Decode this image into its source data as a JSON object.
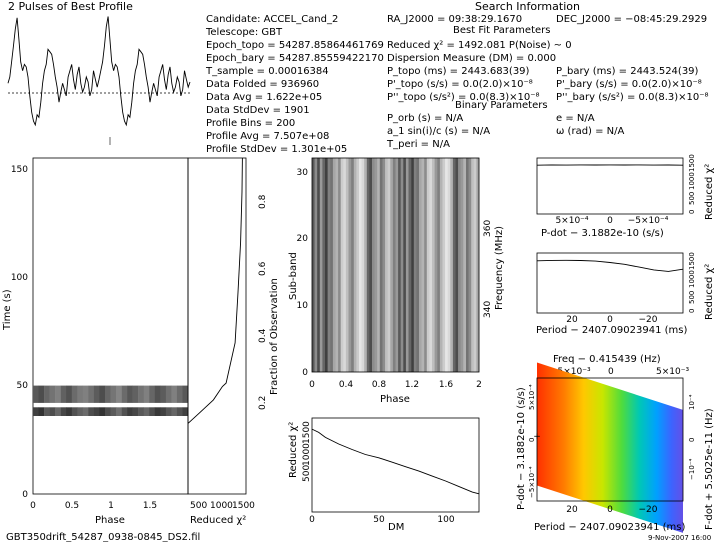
{
  "profile_title": "2 Pulses of Best Profile",
  "search_info_title": "Search Information",
  "info": {
    "col1": [
      "Candidate:  ACCEL_Cand_2",
      "Telescope:  GBT",
      "Epoch_topo = 54287.85864461769",
      "Epoch_bary = 54287.85559422170",
      "T_sample  =   0.00016384",
      "Data Folded   =   936960",
      "Data Avg        =   1.622e+05",
      "Data StdDev   =   1901",
      "Profile Bins    =   200",
      "Profile Avg     =   7.507e+08",
      "Profile StdDev =   1.301e+05"
    ],
    "col2": [
      "RA_J2000 = 09:38:29.1670",
      "Reduced χ² = 1492.081   P(Noise) ~ 0",
      "Dispersion Measure (DM) = 0.000",
      "P_topo (ms)   =  2443.683(39)",
      "P'_topo (s/s) = 0.0(2.0)×10⁻⁸",
      "P''_topo (s/s²) = 0.0(8.3)×10⁻⁸",
      "P_orb (s) = N/A",
      "a_1 sin(i)/c (s) = N/A",
      "T_peri = N/A"
    ],
    "col3": [
      "DEC_J2000 = −08:45:29.2929",
      "P_bary (ms)  =  2443.524(39)",
      "P'_bary (s/s) = 0.0(2.0)×10⁻⁸",
      "P''_bary (s/s²) = 0.0(8.3)×10⁻⁸",
      "e = N/A",
      "ω (rad) = N/A"
    ],
    "best_fit_title": "Best Fit Parameters",
    "binary_title": "Binary Parameters"
  },
  "footer": {
    "filename": "GBT350drift_54287_0938-0845_DS2.fil",
    "date": "9-Nov-2007 16:00"
  },
  "chart_data": [
    {
      "type": "line",
      "id": "pulse-profile",
      "title": "2 Pulses of Best Profile",
      "x": [
        0,
        0.02,
        0.04,
        0.06,
        0.08,
        0.1,
        0.12,
        0.14,
        0.16,
        0.18,
        0.2,
        0.22,
        0.24,
        0.26,
        0.28,
        0.3,
        0.32,
        0.34,
        0.36,
        0.38,
        0.4,
        0.42,
        0.44,
        0.46,
        0.48,
        0.5,
        0.52,
        0.54,
        0.56,
        0.58,
        0.6,
        0.62,
        0.64,
        0.66,
        0.68,
        0.7,
        0.72,
        0.74,
        0.76,
        0.78,
        0.8,
        0.82,
        0.84,
        0.86,
        0.88,
        0.9,
        0.92,
        0.94,
        0.96,
        0.98,
        1,
        1.02,
        1.04,
        1.06,
        1.08,
        1.1,
        1.12,
        1.14,
        1.16,
        1.18,
        1.2,
        1.22,
        1.24,
        1.26,
        1.28,
        1.3,
        1.32,
        1.34,
        1.36,
        1.38,
        1.4,
        1.42,
        1.44,
        1.46,
        1.48,
        1.5,
        1.52,
        1.54,
        1.56,
        1.58,
        1.6,
        1.62,
        1.64,
        1.66,
        1.68,
        1.7,
        1.72,
        1.74,
        1.76,
        1.78,
        1.8,
        1.82,
        1.84,
        1.86,
        1.88,
        1.9,
        1.92,
        1.94,
        1.96,
        1.98,
        2
      ],
      "values": [
        0.45,
        0.5,
        0.62,
        0.75,
        0.88,
        0.97,
        0.8,
        0.62,
        0.55,
        0.6,
        0.58,
        0.5,
        0.35,
        0.22,
        0.15,
        0.12,
        0.2,
        0.18,
        0.3,
        0.45,
        0.55,
        0.6,
        0.72,
        0.7,
        0.68,
        0.6,
        0.5,
        0.42,
        0.3,
        0.38,
        0.45,
        0.4,
        0.35,
        0.5,
        0.55,
        0.6,
        0.48,
        0.4,
        0.52,
        0.58,
        0.45,
        0.38,
        0.42,
        0.5,
        0.46,
        0.35,
        0.4,
        0.55,
        0.48,
        0.42,
        0.48,
        0.55,
        0.62,
        0.75,
        0.9,
        0.98,
        0.8,
        0.62,
        0.55,
        0.6,
        0.58,
        0.5,
        0.35,
        0.22,
        0.15,
        0.12,
        0.2,
        0.18,
        0.3,
        0.45,
        0.55,
        0.6,
        0.72,
        0.7,
        0.68,
        0.6,
        0.5,
        0.42,
        0.3,
        0.38,
        0.45,
        0.4,
        0.35,
        0.5,
        0.55,
        0.6,
        0.48,
        0.4,
        0.52,
        0.58,
        0.45,
        0.38,
        0.42,
        0.5,
        0.46,
        0.35,
        0.4,
        0.55,
        0.48,
        0.42,
        0.46
      ],
      "baseline": 0.42
    },
    {
      "type": "heatmap",
      "id": "time-phase",
      "xlabel": "Phase",
      "ylabel": "Time (s)",
      "xticks": [
        "0",
        "0.5",
        "1",
        "1.5"
      ],
      "yticks": [
        "0",
        "50",
        "100",
        "150"
      ],
      "xlim": [
        0,
        2
      ],
      "ylim": [
        0,
        155
      ],
      "bands": [
        {
          "y0": 42,
          "y1": 50,
          "gray": [
            0.35,
            0.3,
            0.4,
            0.45,
            0.5,
            0.38,
            0.32,
            0.42,
            0.48,
            0.5,
            0.44,
            0.36,
            0.3,
            0.4,
            0.46,
            0.52,
            0.42,
            0.34,
            0.38,
            0.45,
            0.5,
            0.4,
            0.32,
            0.36,
            0.44,
            0.5,
            0.42,
            0.35
          ]
        },
        {
          "y0": 36,
          "y1": 40,
          "gray": [
            0.25,
            0.2,
            0.35,
            0.3,
            0.4,
            0.28,
            0.22,
            0.32,
            0.38,
            0.42,
            0.3,
            0.26,
            0.2,
            0.3,
            0.36,
            0.44,
            0.32,
            0.24,
            0.28,
            0.35,
            0.4,
            0.3,
            0.22,
            0.26,
            0.34,
            0.4,
            0.32,
            0.25
          ]
        }
      ]
    },
    {
      "type": "line",
      "id": "time-chi2",
      "xlabel": "Reduced χ²",
      "y2label": "Fraction of Observation",
      "xticks": [
        "500",
        "1000",
        "1500"
      ],
      "y2ticks": [
        "0.2",
        "0.4",
        "0.6",
        "0.8"
      ],
      "x": [
        1500,
        1490,
        1450,
        1380,
        1300,
        1050,
        950,
        700,
        300,
        0
      ],
      "y": [
        1.0,
        0.9,
        0.75,
        0.6,
        0.45,
        0.33,
        0.32,
        0.28,
        0.24,
        0.21
      ]
    },
    {
      "type": "heatmap",
      "id": "subband-phase",
      "xlabel": "Phase",
      "ylabel": "Sub-band",
      "y2label": "Frequency (MHz)",
      "xticks": [
        "0",
        "0.4",
        "0.8",
        "1.2",
        "1.6",
        "2"
      ],
      "yticks": [
        "0",
        "10",
        "20",
        "30"
      ],
      "y2ticks": [
        "340",
        "360"
      ],
      "xlim": [
        0,
        2
      ],
      "ylim": [
        0,
        32
      ],
      "column_gray": [
        0.35,
        0.55,
        0.3,
        0.6,
        0.4,
        0.25,
        0.5,
        0.45,
        0.65,
        0.7,
        0.55,
        0.8,
        0.85,
        0.75,
        0.6,
        0.5,
        0.7,
        0.8,
        0.9,
        0.85,
        0.7,
        0.4,
        0.3,
        0.55,
        0.6,
        0.7,
        0.45,
        0.55,
        0.75,
        0.8,
        0.65,
        0.5,
        0.6,
        0.35,
        0.55,
        0.3,
        0.6,
        0.4,
        0.25,
        0.5,
        0.45,
        0.65,
        0.7,
        0.55,
        0.8,
        0.85,
        0.75,
        0.6,
        0.5,
        0.7,
        0.8,
        0.9,
        0.85,
        0.7,
        0.4,
        0.3,
        0.55,
        0.6,
        0.7,
        0.45,
        0.55,
        0.75,
        0.8,
        0.65
      ]
    },
    {
      "type": "line",
      "id": "dm-chi2",
      "xlabel": "DM",
      "ylabel": "Reduced χ²",
      "xticks": [
        "0",
        "50",
        "100"
      ],
      "yticks": [
        "500",
        "1000",
        "1500"
      ],
      "xlim": [
        0,
        125
      ],
      "ylim": [
        0,
        1700
      ],
      "x": [
        0,
        5,
        10,
        20,
        30,
        40,
        50,
        60,
        70,
        80,
        90,
        100,
        110,
        120,
        125
      ],
      "y": [
        1500,
        1440,
        1350,
        1230,
        1130,
        1040,
        980,
        900,
        820,
        740,
        650,
        560,
        460,
        360,
        330
      ]
    },
    {
      "type": "line",
      "id": "pdot-chi2",
      "xlabel": "P-dot − 3.1882e-10 (s/s)",
      "y2label": "Reduced χ²",
      "xticks": [
        "5×10⁻⁴",
        "0",
        "−5×10⁻⁴"
      ],
      "yticks": [
        "0",
        "500",
        "1000",
        "1500"
      ],
      "ylim": [
        0,
        1700
      ],
      "x": [
        0,
        0.1,
        0.2,
        0.3,
        0.4,
        0.5,
        0.6,
        0.7,
        0.8,
        0.9,
        1
      ],
      "y": [
        1480,
        1490,
        1485,
        1492,
        1488,
        1492,
        1487,
        1490,
        1485,
        1488,
        1482
      ]
    },
    {
      "type": "line",
      "id": "period-chi2",
      "xlabel": "Period − 2407.09023941 (ms)",
      "y2label": "Reduced χ²",
      "xticks": [
        "20",
        "0",
        "−20"
      ],
      "yticks": [
        "0",
        "500",
        "1000",
        "1500"
      ],
      "ylim": [
        0,
        1700
      ],
      "x": [
        0,
        0.1,
        0.2,
        0.3,
        0.4,
        0.5,
        0.6,
        0.7,
        0.8,
        0.9,
        1
      ],
      "y": [
        1480,
        1490,
        1492,
        1488,
        1470,
        1430,
        1380,
        1300,
        1220,
        1180,
        1240
      ]
    },
    {
      "type": "heatmap",
      "id": "pdot-period",
      "title": "Freq − 0.415439 (Hz)",
      "xlabel": "Period − 2407.09023941 (ms)",
      "ylabel": "P-dot − 3.1882e-10 (s/s)",
      "y2label": "F-dot + 5.5025e-11 (Hz)",
      "xticks": [
        "20",
        "0",
        "−20"
      ],
      "x2ticks": [
        "−5×10⁻³",
        "0",
        "5×10⁻³"
      ],
      "yticks": [
        "−5×10⁻⁴",
        "0",
        "5×10⁻⁴"
      ],
      "y2ticks": [
        "−10⁻⁴",
        "0",
        "10⁻⁴"
      ],
      "colormap": [
        "#ff3000",
        "#ff7a00",
        "#ffc800",
        "#c8e600",
        "#50dc3c",
        "#00c8b4",
        "#00a0ff",
        "#3c64ff",
        "#6450e6"
      ]
    }
  ]
}
